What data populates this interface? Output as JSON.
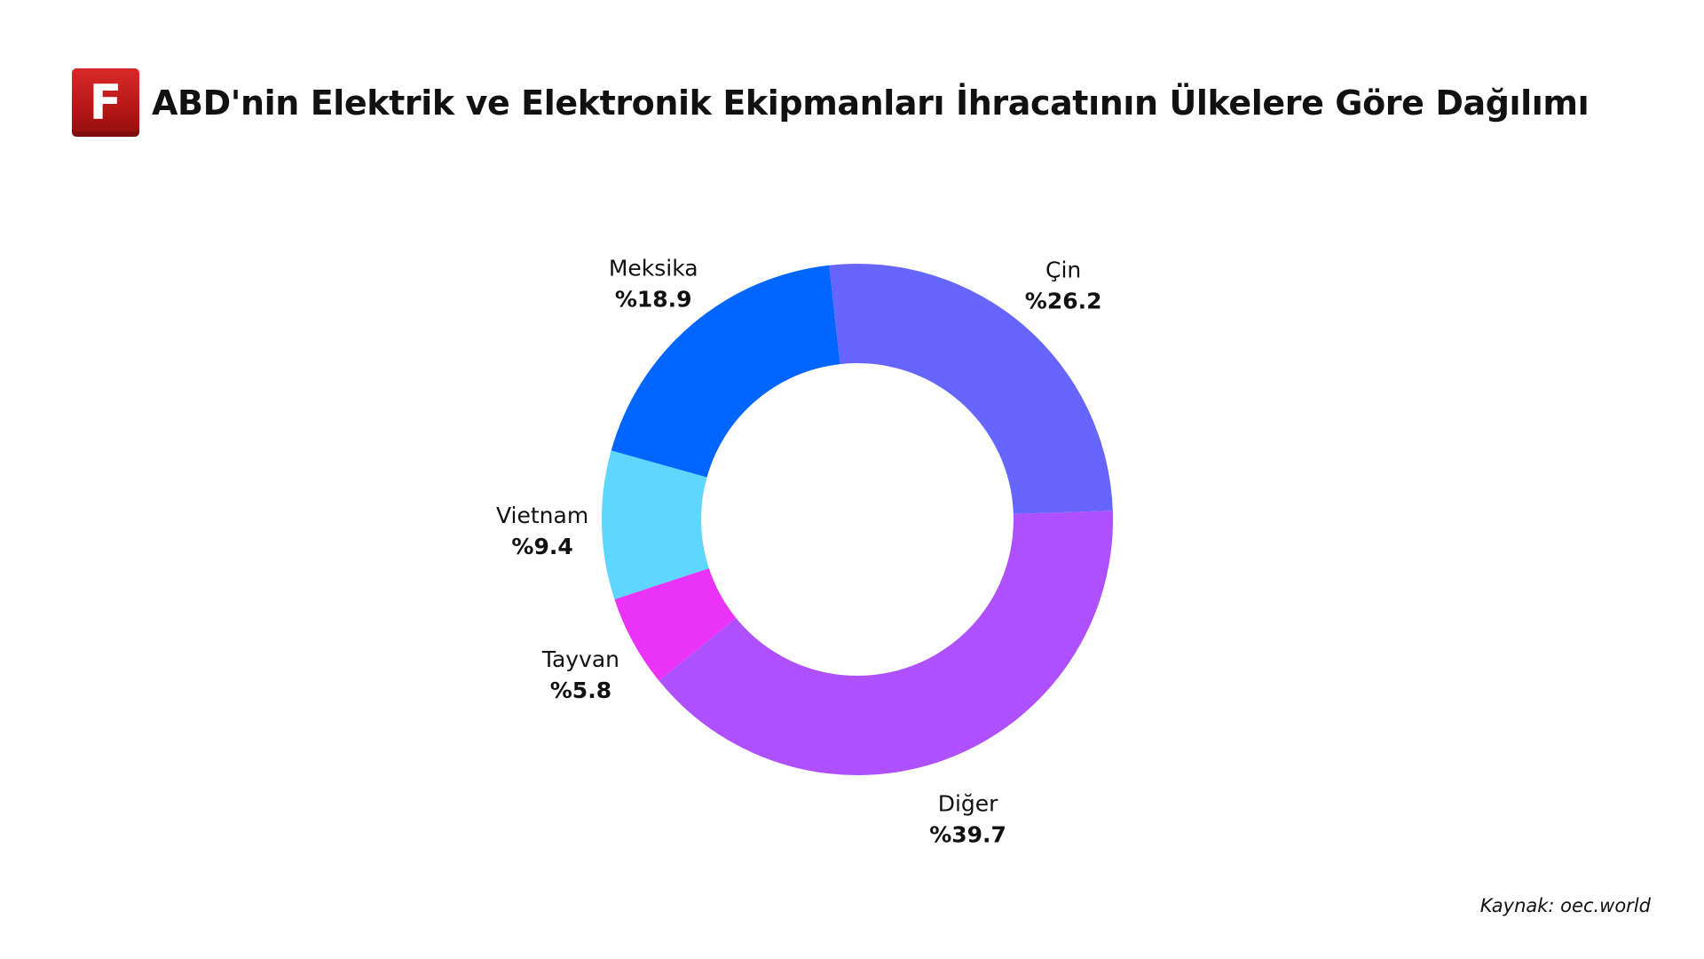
{
  "header": {
    "logo_letter": "F",
    "title": "ABD'nin Elektrik ve Elektronik Ekipmanları İhracatının Ülkelere Göre Dağılımı"
  },
  "chart_data": {
    "type": "pie",
    "title": "ABD'nin Elektrik ve Elektronik Ekipmanları İhracatının Ülkelere Göre Dağılımı",
    "donut": true,
    "slices": [
      {
        "label": "Diğer",
        "value": 39.7,
        "value_label": "%39.7",
        "color": "#ae50fd"
      },
      {
        "label": "Tayvan",
        "value": 5.8,
        "value_label": "%5.8",
        "color": "#ea33f7"
      },
      {
        "label": "Vietnam",
        "value": 9.4,
        "value_label": "%9.4",
        "color": "#5fd6fd"
      },
      {
        "label": "Meksika",
        "value": 18.9,
        "value_label": "%18.9",
        "color": "#0066ff"
      },
      {
        "label": "Çin",
        "value": 26.2,
        "value_label": "%26.2",
        "color": "#6666fe"
      }
    ]
  },
  "footer": {
    "source": "Kaynak: oec.world"
  }
}
